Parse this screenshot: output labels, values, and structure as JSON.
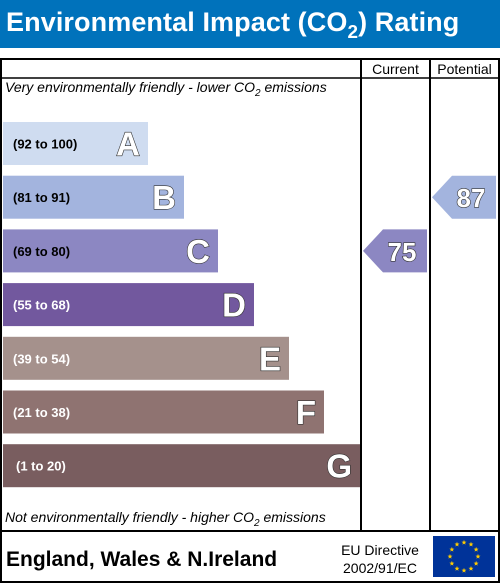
{
  "title": {
    "prefix": "Environmental Impact (CO",
    "subscript": "2",
    "suffix": ") Rating"
  },
  "header": {
    "current_label": "Current",
    "potential_label": "Potential"
  },
  "captions": {
    "top_prefix": "Very environmentally friendly - lower CO",
    "top_sub": "2",
    "top_suffix": " emissions",
    "bottom_prefix": "Not environmentally friendly - higher CO",
    "bottom_sub": "2",
    "bottom_suffix": " emissions"
  },
  "footer": {
    "region": "England, Wales & N.Ireland",
    "directive_line1": "EU Directive",
    "directive_line2": "2002/91/EC"
  },
  "colors": {
    "title_bg": "#0072bb",
    "eu_flag_bg": "#003399",
    "eu_flag_stars": "#ffcc00"
  },
  "chart_data": {
    "type": "bar",
    "categories": [
      "A",
      "B",
      "C",
      "D",
      "E",
      "F",
      "G"
    ],
    "ranges": [
      "(92 to 100)",
      "(81 to 91)",
      "(69 to 80)",
      "(55 to 68)",
      "(39 to 54)",
      "(21 to 38)",
      "(1 to 20)"
    ],
    "band_colors": [
      "#cfdcf0",
      "#a3b4de",
      "#8c87c2",
      "#72589e",
      "#a5918c",
      "#8f7371",
      "#795d5f"
    ],
    "current": {
      "label": "Current",
      "value": 75,
      "band": "C",
      "color": "#8c87c2"
    },
    "potential": {
      "label": "Potential",
      "value": 87,
      "band": "B",
      "color": "#a3b4de"
    }
  }
}
